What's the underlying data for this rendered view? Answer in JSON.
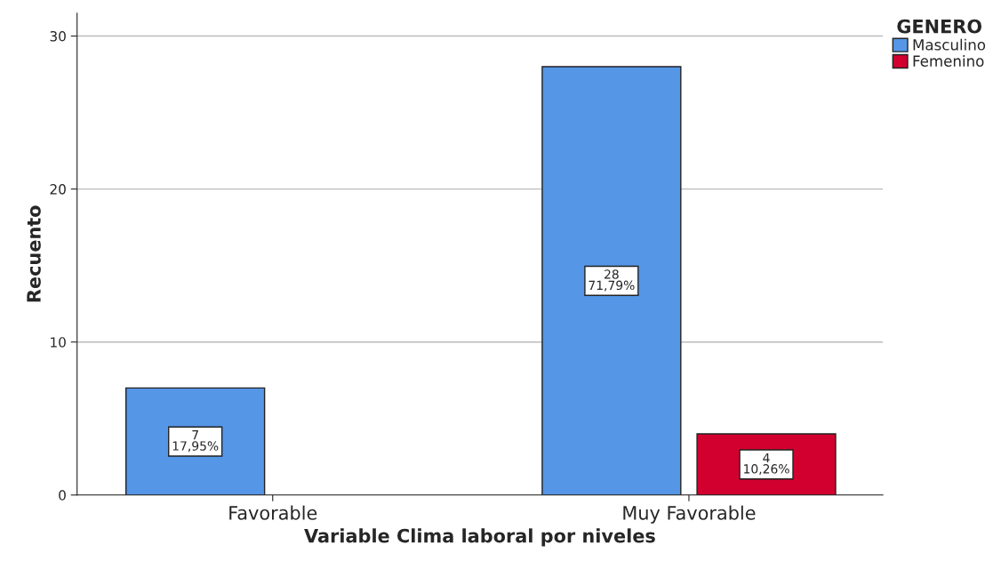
{
  "chart_data": {
    "type": "bar",
    "xlabel": "Variable Clima laboral por niveles",
    "ylabel": "Recuento",
    "legend_title": "GENERO",
    "categories": [
      "Favorable",
      "Muy Favorable"
    ],
    "series": [
      {
        "name": "Masculino",
        "color": "#5596e6",
        "values": [
          7,
          28
        ],
        "value_labels": [
          "7\n17,95%",
          "28\n71,79%"
        ]
      },
      {
        "name": "Femenino",
        "color": "#d2002f",
        "values": [
          null,
          4
        ],
        "value_labels": [
          null,
          "4\n10,26%"
        ]
      }
    ],
    "ylim": [
      0,
      31.5
    ],
    "yticks": [
      0,
      10,
      20,
      30
    ],
    "grid": "y",
    "legend": "top right"
  }
}
